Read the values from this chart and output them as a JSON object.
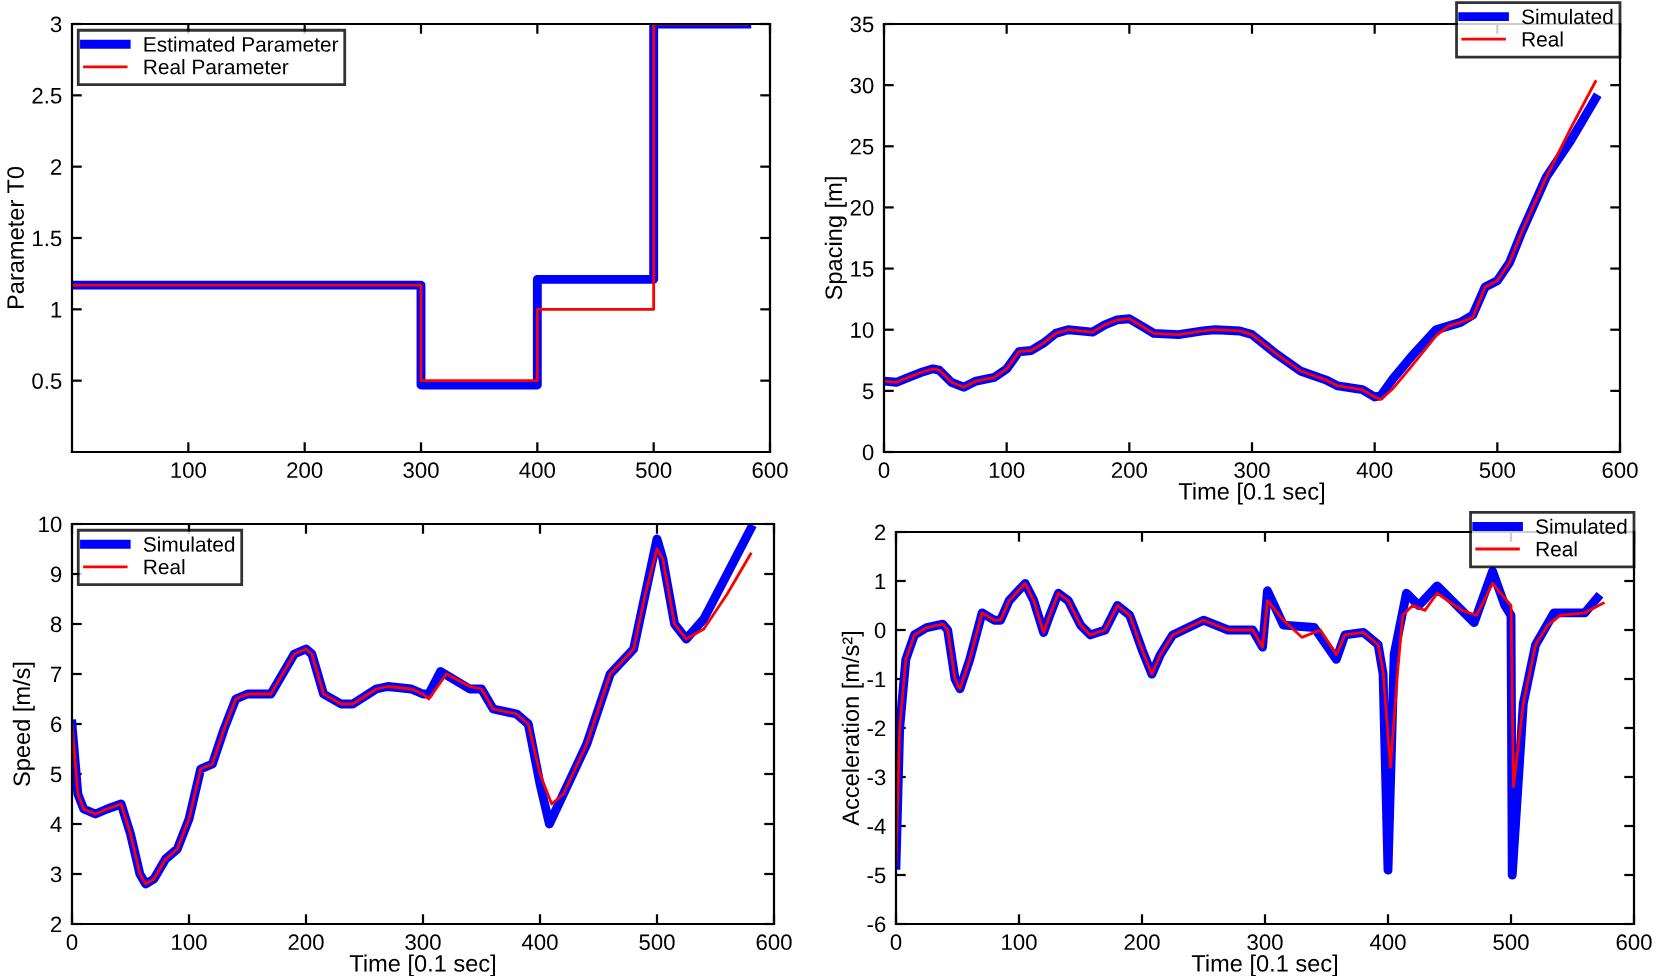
{
  "chart_data": [
    {
      "type": "step",
      "ylabel": "Parameter T0",
      "xlim": [
        0,
        600
      ],
      "ylim": [
        0,
        3
      ],
      "xticks": [
        100,
        200,
        300,
        400,
        500,
        600
      ],
      "yticks": [
        0.5,
        1,
        1.5,
        2,
        2.5,
        3
      ],
      "legend": "top left",
      "grid": false,
      "series": [
        {
          "name": "Estimated Parameter",
          "color": "#0000ff",
          "x": [
            0,
            300,
            400,
            500,
            580
          ],
          "values": [
            1.17,
            0.47,
            1.21,
            3.0,
            3.0
          ]
        },
        {
          "name": "Real Parameter",
          "color": "#ff0000",
          "x": [
            0,
            300,
            400,
            500,
            580
          ],
          "values": [
            1.17,
            0.5,
            1.0,
            3.0,
            3.0
          ]
        }
      ]
    },
    {
      "type": "line",
      "xlabel": "Time [0.1 sec]",
      "ylabel": "Spacing [m]",
      "xlim": [
        0,
        600
      ],
      "ylim": [
        0,
        35
      ],
      "xticks": [
        0,
        100,
        200,
        300,
        400,
        500,
        600
      ],
      "yticks": [
        0,
        5,
        10,
        15,
        20,
        25,
        30,
        35
      ],
      "legend": "top right",
      "grid": false,
      "series": [
        {
          "name": "Simulated",
          "color": "#0000ff",
          "x": [
            0,
            10,
            20,
            30,
            40,
            45,
            55,
            65,
            75,
            90,
            100,
            110,
            120,
            130,
            140,
            150,
            160,
            170,
            180,
            190,
            200,
            210,
            220,
            240,
            260,
            270,
            290,
            300,
            320,
            340,
            360,
            370,
            390,
            400,
            405,
            415,
            430,
            450,
            470,
            480,
            490,
            500,
            510,
            520,
            540,
            560,
            580
          ],
          "values": [
            5.8,
            5.7,
            6.1,
            6.5,
            6.8,
            6.7,
            5.7,
            5.3,
            5.8,
            6.1,
            6.8,
            8.2,
            8.3,
            8.9,
            9.7,
            10.0,
            9.9,
            9.8,
            10.4,
            10.8,
            10.9,
            10.3,
            9.7,
            9.6,
            9.9,
            10.0,
            9.9,
            9.6,
            8.0,
            6.6,
            5.9,
            5.4,
            5.1,
            4.5,
            4.6,
            6.0,
            7.8,
            10.0,
            10.6,
            11.2,
            13.5,
            14.0,
            15.5,
            18.0,
            22.5,
            25.5,
            28.9
          ]
        },
        {
          "name": "Real",
          "color": "#ff0000",
          "x": [
            0,
            10,
            20,
            30,
            40,
            45,
            55,
            65,
            75,
            90,
            100,
            110,
            120,
            130,
            140,
            150,
            160,
            170,
            180,
            190,
            200,
            210,
            220,
            240,
            260,
            270,
            290,
            300,
            320,
            340,
            360,
            370,
            390,
            400,
            405,
            415,
            430,
            450,
            460,
            470,
            480,
            490,
            500,
            510,
            520,
            540,
            560,
            580
          ],
          "values": [
            5.8,
            5.7,
            6.1,
            6.5,
            6.8,
            6.7,
            5.7,
            5.3,
            5.8,
            6.1,
            6.8,
            8.2,
            8.3,
            8.9,
            9.7,
            10.0,
            9.9,
            9.8,
            10.4,
            10.8,
            10.9,
            10.3,
            9.7,
            9.6,
            9.9,
            10.0,
            9.9,
            9.6,
            8.0,
            6.6,
            5.9,
            5.4,
            5.1,
            4.5,
            4.3,
            5.2,
            7.0,
            9.5,
            10.3,
            10.6,
            11.0,
            13.5,
            14.0,
            15.5,
            18.0,
            22.5,
            26.5,
            30.3
          ]
        }
      ]
    },
    {
      "type": "line",
      "xlabel": "Time [0.1 sec]",
      "ylabel": "Speed [m/s]",
      "xlim": [
        0,
        600
      ],
      "ylim": [
        2,
        10
      ],
      "xticks": [
        0,
        100,
        200,
        300,
        400,
        500,
        600
      ],
      "yticks": [
        2,
        3,
        4,
        5,
        6,
        7,
        8,
        9,
        10
      ],
      "legend": "top left",
      "grid": false,
      "series": [
        {
          "name": "Simulated",
          "color": "#0000ff",
          "x": [
            0,
            5,
            10,
            20,
            30,
            42,
            50,
            58,
            63,
            70,
            80,
            90,
            100,
            110,
            120,
            130,
            140,
            150,
            160,
            170,
            180,
            190,
            200,
            205,
            215,
            230,
            240,
            260,
            270,
            290,
            300,
            305,
            315,
            340,
            350,
            360,
            380,
            390,
            400,
            408,
            420,
            440,
            460,
            480,
            490,
            500,
            505,
            515,
            525,
            540,
            560,
            580
          ],
          "values": [
            6.0,
            4.6,
            4.3,
            4.2,
            4.3,
            4.4,
            3.8,
            3.0,
            2.8,
            2.9,
            3.3,
            3.5,
            4.1,
            5.1,
            5.2,
            5.9,
            6.5,
            6.6,
            6.6,
            6.6,
            7.0,
            7.4,
            7.5,
            7.4,
            6.6,
            6.4,
            6.4,
            6.7,
            6.75,
            6.7,
            6.6,
            6.6,
            7.05,
            6.7,
            6.7,
            6.3,
            6.2,
            6.0,
            4.8,
            4.0,
            4.6,
            5.6,
            7.0,
            7.5,
            8.6,
            9.7,
            9.3,
            8.0,
            7.7,
            8.1,
            9.0,
            9.9
          ]
        },
        {
          "name": "Real",
          "color": "#ff0000",
          "x": [
            0,
            5,
            10,
            20,
            30,
            42,
            50,
            58,
            63,
            70,
            80,
            90,
            100,
            110,
            120,
            130,
            140,
            150,
            160,
            170,
            180,
            190,
            200,
            205,
            215,
            230,
            240,
            260,
            270,
            290,
            300,
            305,
            320,
            340,
            350,
            360,
            380,
            390,
            400,
            410,
            420,
            440,
            460,
            480,
            490,
            500,
            505,
            515,
            525,
            540,
            560,
            580
          ],
          "values": [
            6.0,
            4.6,
            4.3,
            4.2,
            4.3,
            4.4,
            3.8,
            3.0,
            2.8,
            2.9,
            3.3,
            3.5,
            4.1,
            5.1,
            5.2,
            5.9,
            6.5,
            6.6,
            6.6,
            6.6,
            7.0,
            7.4,
            7.5,
            7.4,
            6.6,
            6.4,
            6.4,
            6.7,
            6.75,
            6.7,
            6.6,
            6.5,
            7.0,
            6.75,
            6.7,
            6.3,
            6.2,
            6.0,
            5.0,
            4.4,
            4.6,
            5.6,
            7.0,
            7.5,
            8.6,
            9.5,
            9.3,
            8.0,
            7.7,
            7.9,
            8.6,
            9.4
          ]
        }
      ]
    },
    {
      "type": "line",
      "xlabel": "Time [0.1 sec]",
      "ylabel": "Acceleration [m/s²]",
      "xlim": [
        0,
        600
      ],
      "ylim": [
        -6,
        2
      ],
      "xticks": [
        0,
        100,
        200,
        300,
        400,
        500,
        600
      ],
      "yticks": [
        -6,
        -5,
        -4,
        -3,
        -2,
        -1,
        0,
        1,
        2
      ],
      "legend": "top right",
      "grid": false,
      "series": [
        {
          "name": "Simulated",
          "color": "#0000ff",
          "x": [
            0,
            3,
            8,
            15,
            25,
            38,
            42,
            48,
            52,
            60,
            70,
            80,
            85,
            92,
            105,
            112,
            120,
            125,
            132,
            140,
            150,
            158,
            170,
            180,
            190,
            200,
            208,
            215,
            225,
            250,
            270,
            290,
            298,
            302,
            315,
            340,
            358,
            365,
            380,
            392,
            396,
            400,
            405,
            415,
            425,
            440,
            470,
            485,
            495,
            500,
            501,
            510,
            520,
            535,
            560,
            570
          ],
          "values": [
            -4.8,
            -2.0,
            -0.6,
            -0.1,
            0.05,
            0.12,
            0.0,
            -1.0,
            -1.2,
            -0.6,
            0.35,
            0.2,
            0.2,
            0.6,
            0.95,
            0.6,
            -0.05,
            0.3,
            0.75,
            0.6,
            0.1,
            -0.1,
            0.0,
            0.5,
            0.3,
            -0.4,
            -0.9,
            -0.5,
            -0.1,
            0.2,
            0.0,
            0.0,
            -0.35,
            0.8,
            0.1,
            0.05,
            -0.6,
            -0.1,
            -0.05,
            -0.3,
            -0.9,
            -4.9,
            -0.5,
            0.75,
            0.5,
            0.9,
            0.15,
            1.2,
            0.5,
            0.3,
            -5.0,
            -1.5,
            -0.3,
            0.35,
            0.35,
            0.65
          ]
        },
        {
          "name": "Real",
          "color": "#ff0000",
          "x": [
            0,
            3,
            8,
            15,
            25,
            38,
            42,
            48,
            52,
            60,
            70,
            80,
            85,
            92,
            105,
            112,
            120,
            125,
            132,
            140,
            150,
            158,
            170,
            180,
            190,
            200,
            208,
            215,
            225,
            250,
            270,
            290,
            298,
            302,
            315,
            330,
            345,
            358,
            365,
            380,
            392,
            396,
            402,
            408,
            412,
            420,
            430,
            440,
            460,
            472,
            485,
            500,
            502,
            510,
            520,
            530,
            540,
            560,
            575
          ],
          "values": [
            -4.8,
            -2.0,
            -0.6,
            -0.1,
            0.05,
            0.12,
            0.0,
            -1.0,
            -1.2,
            -0.6,
            0.35,
            0.2,
            0.2,
            0.6,
            0.95,
            0.6,
            -0.05,
            0.3,
            0.75,
            0.6,
            0.1,
            -0.1,
            0.0,
            0.5,
            0.3,
            -0.4,
            -0.9,
            -0.5,
            -0.1,
            0.2,
            0.0,
            0.0,
            -0.35,
            0.6,
            0.2,
            -0.15,
            0.0,
            -0.5,
            -0.1,
            -0.05,
            -0.3,
            -0.85,
            -2.8,
            -0.8,
            0.3,
            0.5,
            0.4,
            0.75,
            0.4,
            0.3,
            0.95,
            0.5,
            -3.2,
            -1.5,
            -0.3,
            0.1,
            0.3,
            0.35,
            0.55
          ]
        }
      ]
    }
  ]
}
